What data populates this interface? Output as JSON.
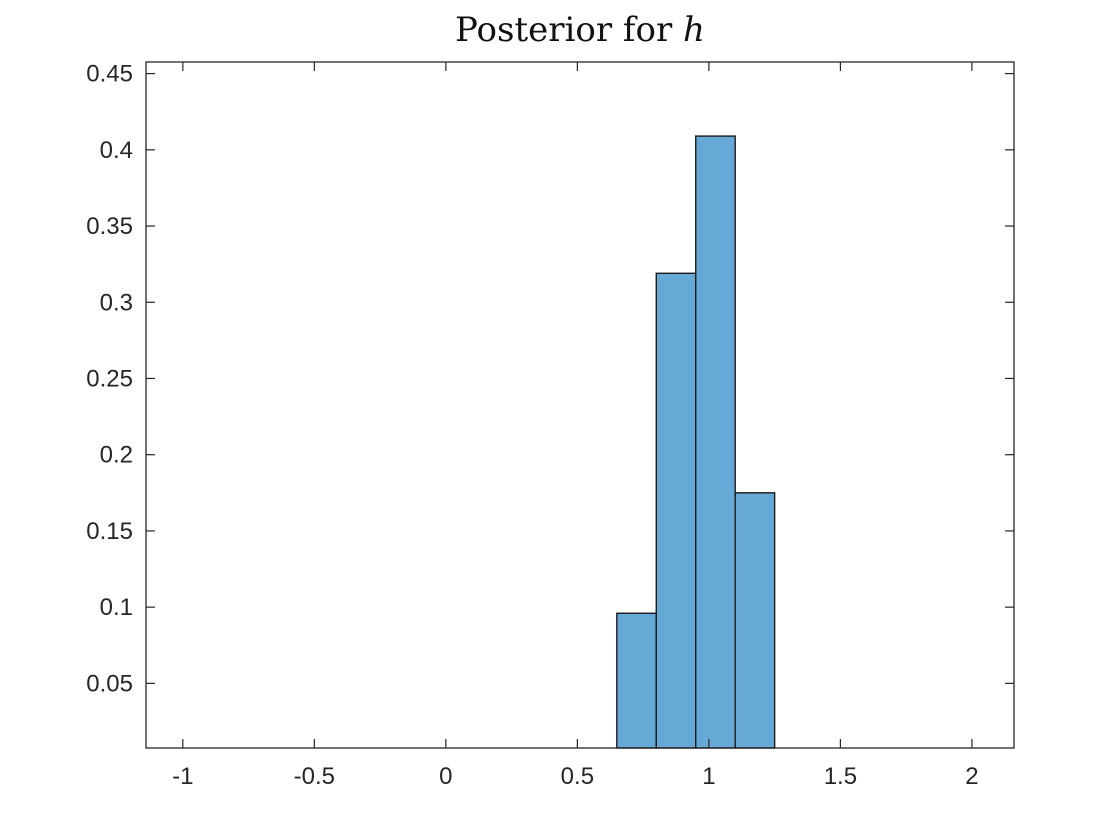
{
  "chart_data": {
    "type": "bar",
    "title": "Posterior for",
    "title_math": "h",
    "xlabel": "",
    "ylabel": "",
    "xlim": [
      -1.14,
      2.16
    ],
    "ylim": [
      0.0076,
      0.4576
    ],
    "xticks": [
      -1,
      -0.5,
      0,
      0.5,
      1,
      1.5,
      2
    ],
    "xtick_labels": [
      "-1",
      "-0.5",
      "0",
      "0.5",
      "1",
      "1.5",
      "2"
    ],
    "yticks": [
      0.05,
      0.1,
      0.15,
      0.2,
      0.25,
      0.3,
      0.35,
      0.4,
      0.45
    ],
    "ytick_labels": [
      "0.05",
      "0.1",
      "0.15",
      "0.2",
      "0.25",
      "0.3",
      "0.35",
      "0.4",
      "0.45"
    ],
    "grid": false,
    "bins": [
      {
        "x0": 0.65,
        "x1": 0.8,
        "value": 0.096
      },
      {
        "x0": 0.8,
        "x1": 0.95,
        "value": 0.319
      },
      {
        "x0": 0.95,
        "x1": 1.1,
        "value": 0.409
      },
      {
        "x0": 1.1,
        "x1": 1.25,
        "value": 0.175
      }
    ],
    "bar_color": "#66a9d6",
    "edge_color": "#1a1a1a"
  }
}
